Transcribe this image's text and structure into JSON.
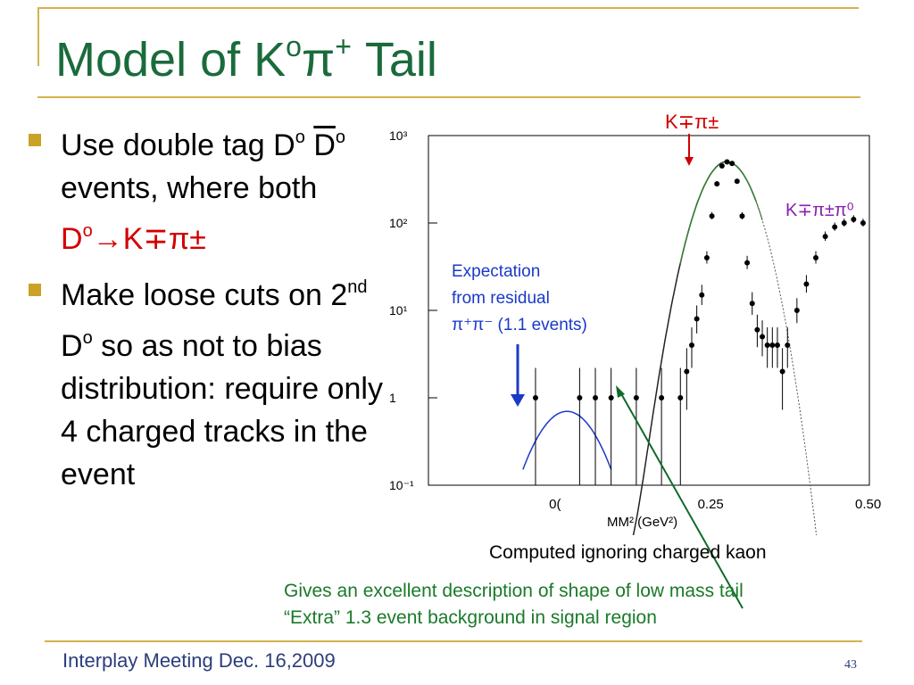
{
  "slide": {
    "title_main": "Model of K",
    "title_sup1": "o",
    "title_pi": "π",
    "title_sup2": "+",
    "title_tail": " Tail",
    "bullets": {
      "b1_line1": "Use double tag D",
      "b1_sup1": "o",
      "b1_dbar": "D",
      "b1_sup2": "o",
      "b1_mid": " events, where both ",
      "b1_red": "D",
      "b1_red_sup": "o",
      "b1_red_tail": "→K∓π±",
      "b2_line1": "Make loose cuts on 2",
      "b2_sup1": "nd",
      "b2_mid": " D",
      "b2_sup2": "o",
      "b2_tail": " so as not to bias distribution: require only 4 charged tracks in the event"
    },
    "captions": {
      "computed": "Computed ignoring charged kaon",
      "gives_line1": "Gives an excellent description of shape of low mass tail",
      "gives_line2": "“Extra” 1.3 event background in signal region"
    },
    "footer": {
      "meeting": "Interplay Meeting Dec. 16,2009",
      "page": "43"
    }
  },
  "chart_data": {
    "type": "scatter",
    "xlabel": "MM² (GeV²)",
    "ylog": true,
    "xlim": [
      -0.2,
      0.5
    ],
    "ylim_log10": [
      -1,
      3
    ],
    "ytick_labels": [
      "10⁻¹",
      "1",
      "10¹",
      "10²",
      "10³"
    ],
    "xtick_labels": [
      "0(",
      "0.25",
      "0.50"
    ],
    "annotations": {
      "peak": "K∓π±",
      "second": "K∓π±π⁰",
      "expect1": "Expectation",
      "expect2": "from residual",
      "expect3": "π⁺π⁻ (1.1 events)"
    },
    "colors": {
      "expect": "#1a39c8",
      "second": "#8a1fb0",
      "peak": "#d20000",
      "green_curve": "#2f8a2f",
      "arrow": "#106a2a"
    },
    "points": [
      {
        "x": -0.03,
        "y": 1
      },
      {
        "x": 0.04,
        "y": 1
      },
      {
        "x": 0.065,
        "y": 1
      },
      {
        "x": 0.09,
        "y": 1
      },
      {
        "x": 0.13,
        "y": 1
      },
      {
        "x": 0.17,
        "y": 1
      },
      {
        "x": 0.2,
        "y": 1
      },
      {
        "x": 0.21,
        "y": 2
      },
      {
        "x": 0.218,
        "y": 4
      },
      {
        "x": 0.226,
        "y": 8
      },
      {
        "x": 0.234,
        "y": 15
      },
      {
        "x": 0.242,
        "y": 40
      },
      {
        "x": 0.25,
        "y": 120
      },
      {
        "x": 0.258,
        "y": 280
      },
      {
        "x": 0.266,
        "y": 450
      },
      {
        "x": 0.274,
        "y": 500
      },
      {
        "x": 0.282,
        "y": 480
      },
      {
        "x": 0.29,
        "y": 300
      },
      {
        "x": 0.298,
        "y": 120
      },
      {
        "x": 0.306,
        "y": 35
      },
      {
        "x": 0.314,
        "y": 12
      },
      {
        "x": 0.322,
        "y": 6
      },
      {
        "x": 0.33,
        "y": 5
      },
      {
        "x": 0.338,
        "y": 4
      },
      {
        "x": 0.346,
        "y": 4
      },
      {
        "x": 0.354,
        "y": 4
      },
      {
        "x": 0.362,
        "y": 2
      },
      {
        "x": 0.37,
        "y": 4
      },
      {
        "x": 0.385,
        "y": 10
      },
      {
        "x": 0.4,
        "y": 20
      },
      {
        "x": 0.415,
        "y": 40
      },
      {
        "x": 0.43,
        "y": 70
      },
      {
        "x": 0.445,
        "y": 90
      },
      {
        "x": 0.46,
        "y": 100
      },
      {
        "x": 0.475,
        "y": 110
      },
      {
        "x": 0.49,
        "y": 100
      }
    ]
  }
}
